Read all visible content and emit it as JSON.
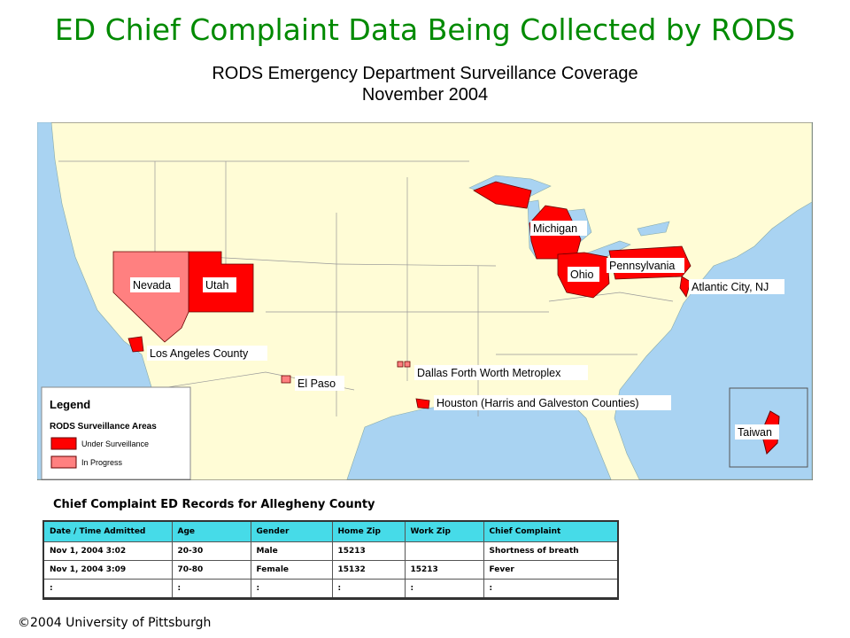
{
  "title": "ED Chief Complaint Data Being Collected by RODS",
  "map": {
    "title": [
      "RODS Emergency Department Surveillance Coverage",
      "November 2004"
    ],
    "labels": [
      "Nevada",
      "Utah",
      "Los Angeles County",
      "El Paso",
      "Dallas Forth Worth Metroplex",
      "Houston (Harris and Galveston Counties)",
      "Michigan",
      "Ohio",
      "Pennsylvania",
      "Atlantic City, NJ",
      "Taiwan"
    ],
    "legend": {
      "title": "Legend",
      "subtitle": "RODS Surveillance Areas",
      "items": [
        "Under Surveillance",
        "In Progress"
      ]
    }
  },
  "table": {
    "caption": "Chief Complaint ED Records for Allegheny County",
    "header": [
      "Date / Time Admitted",
      "Age",
      "Gender",
      "Home Zip",
      "Work Zip",
      "Chief Complaint"
    ],
    "rows": [
      [
        "Nov 1, 2004 3:02",
        "20-30",
        "Male",
        "15213",
        null,
        "Shortness of breath"
      ],
      [
        "Nov 1, 2004 3:09",
        "70-80",
        "Female",
        "15132",
        "15213",
        "Fever"
      ],
      [
        ":",
        ":",
        ":",
        ":",
        ":",
        ":"
      ]
    ]
  },
  "footer": "©2004 University of Pittsburgh"
}
